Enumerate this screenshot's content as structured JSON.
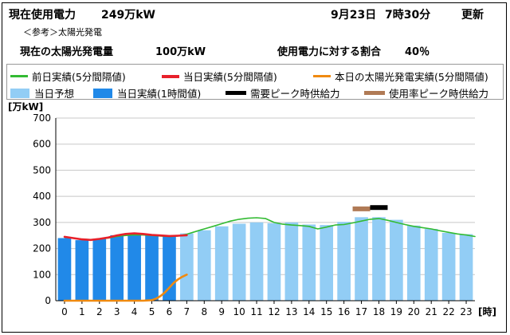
{
  "header": {
    "current_usage_label": "現在使用電力",
    "current_usage_value": "249万kW",
    "date": "9月23日",
    "time": "7時30分",
    "update_label": "更新",
    "reference_label": "＜参考＞太陽光発電",
    "solar_label": "現在の太陽光発電量",
    "solar_value": "100万kW",
    "ratio_label": "使用電力に対する割合",
    "ratio_value": "40％"
  },
  "legend": {
    "prev_day": "前日実績(5分間隔値)",
    "today_5min": "当日実績(5分間隔値)",
    "solar": "本日の太陽光発電実績(5分間隔値)",
    "forecast": "当日予想",
    "today_hourly": "当日実績(1時間値)",
    "peak_demand": "需要ピーク時供給力",
    "peak_rate": "使用率ピーク時供給力"
  },
  "colors": {
    "prev_day": "#33bb33",
    "today_5min": "#e8202a",
    "solar": "#f08a10",
    "forecast": "#92cdf5",
    "today_hourly": "#2189e8",
    "peak_demand": "#000000",
    "peak_rate": "#b07a55"
  },
  "chart_data": {
    "type": "bar",
    "ylabel": "[万kW]",
    "xlabel": "[時]",
    "ylim": [
      0,
      700
    ],
    "yticks": [
      0,
      100,
      200,
      300,
      400,
      500,
      600,
      700
    ],
    "grid": true,
    "categories": [
      "0",
      "1",
      "2",
      "3",
      "4",
      "5",
      "6",
      "7",
      "8",
      "9",
      "10",
      "11",
      "12",
      "13",
      "14",
      "15",
      "16",
      "17",
      "18",
      "19",
      "20",
      "21",
      "22",
      "23"
    ],
    "series": [
      {
        "name": "当日実績(1時間値)",
        "kind": "bar",
        "values": [
          240,
          232,
          237,
          251,
          258,
          252,
          246,
          null,
          null,
          null,
          null,
          null,
          null,
          null,
          null,
          null,
          null,
          null,
          null,
          null,
          null,
          null,
          null,
          null
        ]
      },
      {
        "name": "当日予想",
        "kind": "bar",
        "values": [
          null,
          null,
          null,
          null,
          null,
          null,
          null,
          258,
          270,
          285,
          295,
          300,
          297,
          300,
          292,
          290,
          302,
          320,
          320,
          310,
          288,
          275,
          260,
          255
        ]
      },
      {
        "name": "前日実績(5分間隔値)",
        "kind": "line",
        "x": [
          0,
          0.5,
          1,
          1.5,
          2,
          2.5,
          3,
          3.5,
          4,
          4.5,
          5,
          5.5,
          6,
          6.5,
          7,
          7.5,
          8,
          8.5,
          9,
          9.5,
          10,
          10.5,
          11,
          11.5,
          12,
          12.5,
          13,
          13.5,
          14,
          14.5,
          15,
          15.5,
          16,
          16.5,
          17,
          17.5,
          18,
          18.5,
          19,
          19.5,
          20,
          20.5,
          21,
          21.5,
          22,
          22.5,
          23,
          23.5
        ],
        "values": [
          243,
          240,
          236,
          234,
          236,
          240,
          246,
          250,
          252,
          252,
          250,
          248,
          246,
          248,
          255,
          265,
          275,
          285,
          295,
          305,
          312,
          316,
          318,
          315,
          300,
          293,
          290,
          288,
          285,
          275,
          282,
          290,
          292,
          298,
          305,
          312,
          315,
          308,
          300,
          292,
          285,
          280,
          275,
          268,
          262,
          256,
          252,
          246
        ]
      },
      {
        "name": "当日実績(5分間隔値)",
        "kind": "line",
        "x": [
          0,
          0.5,
          1,
          1.5,
          2,
          2.5,
          3,
          3.5,
          4,
          4.5,
          5,
          5.5,
          6,
          6.5,
          7
        ],
        "values": [
          245,
          240,
          235,
          233,
          237,
          242,
          250,
          256,
          258,
          256,
          252,
          250,
          248,
          249,
          251
        ]
      },
      {
        "name": "本日の太陽光発電実績(5分間隔値)",
        "kind": "line",
        "x": [
          0,
          1,
          2,
          3,
          4,
          4.5,
          5,
          5.25,
          5.5,
          5.75,
          6,
          6.25,
          6.5,
          6.75,
          7
        ],
        "values": [
          0,
          0,
          0,
          0,
          0,
          0,
          2,
          8,
          18,
          32,
          50,
          68,
          82,
          92,
          100
        ]
      },
      {
        "name": "需要ピーク時供給力",
        "kind": "segment",
        "x": 18,
        "value": 357
      },
      {
        "name": "使用率ピーク時供給力",
        "kind": "segment",
        "x": 17,
        "value": 352
      }
    ]
  }
}
